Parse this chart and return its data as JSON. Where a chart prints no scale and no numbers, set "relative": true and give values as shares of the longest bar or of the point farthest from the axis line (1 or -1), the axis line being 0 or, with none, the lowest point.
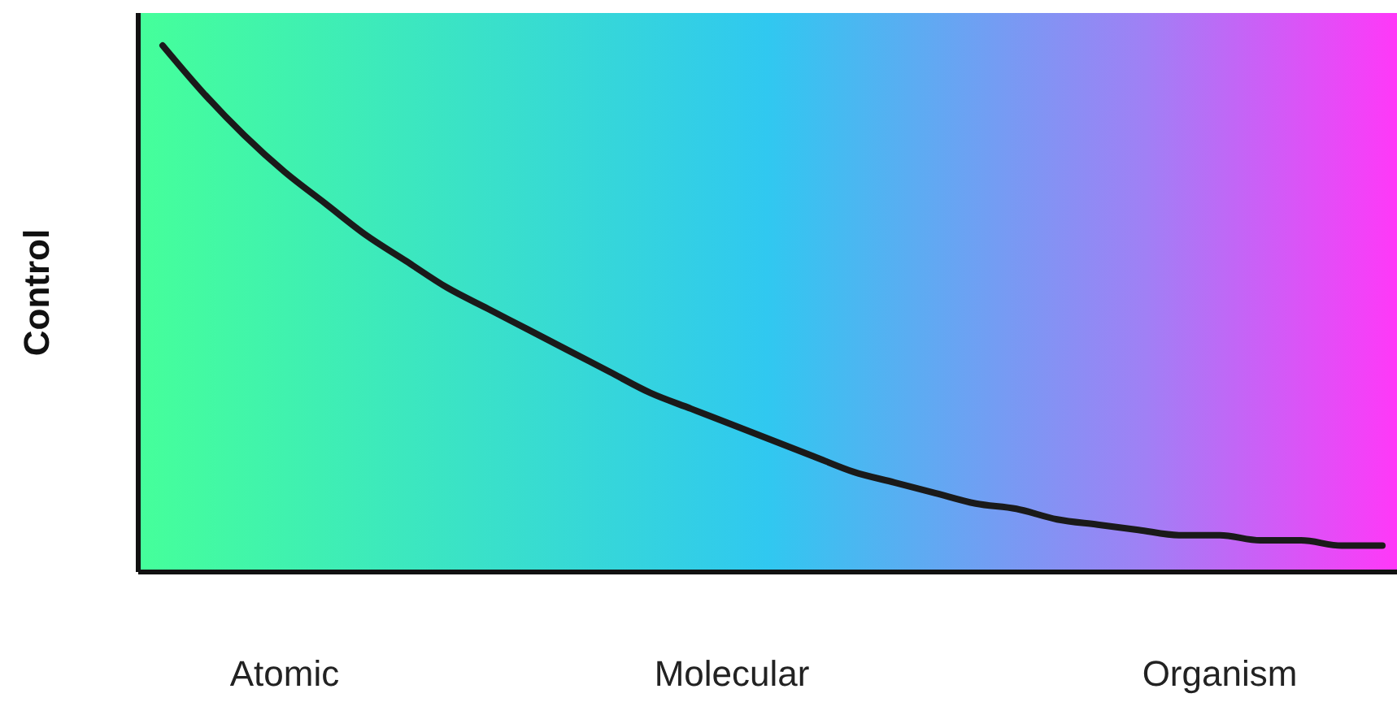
{
  "chart_data": {
    "type": "line",
    "ylabel": "Control",
    "relative": true,
    "grid": false,
    "marker": "none",
    "line_style": "solid",
    "categories": [
      null,
      null,
      null,
      "Atomic",
      null,
      null,
      null,
      null,
      null,
      null,
      null,
      null,
      null,
      null,
      "Molecular",
      null,
      null,
      null,
      null,
      null,
      null,
      null,
      null,
      null,
      null,
      null,
      "Organism",
      null,
      null,
      null,
      null
    ],
    "series": [
      {
        "color": "#1a1a1a",
        "values": [
          1.0,
          0.91,
          0.83,
          0.76,
          0.7,
          0.64,
          0.59,
          0.54,
          0.5,
          0.46,
          0.42,
          0.38,
          0.34,
          0.31,
          0.28,
          0.25,
          0.22,
          0.19,
          0.17,
          0.15,
          0.13,
          0.12,
          0.1,
          0.09,
          0.08,
          0.07,
          0.07,
          0.06,
          0.06,
          0.05,
          0.05
        ]
      }
    ]
  }
}
